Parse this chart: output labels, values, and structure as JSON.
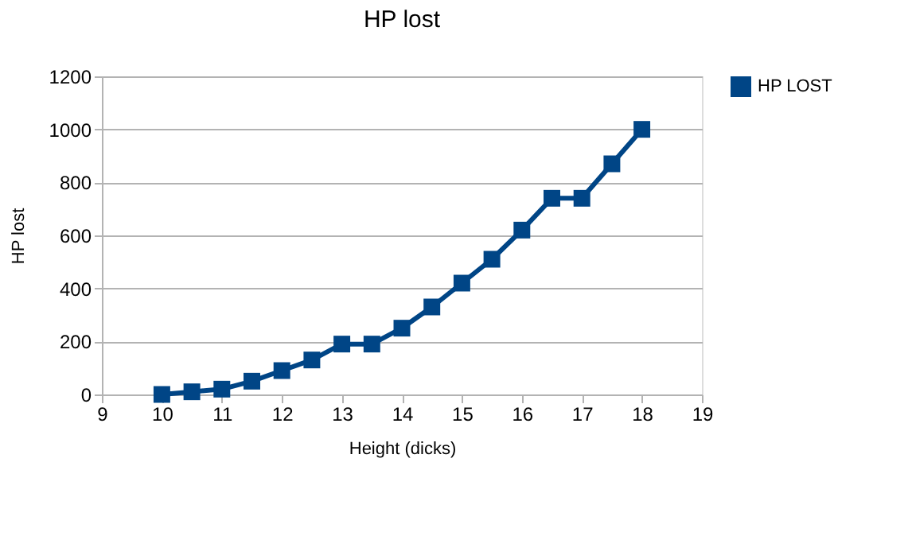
{
  "chart_data": {
    "type": "line",
    "title": "HP lost",
    "xlabel": "Height (dicks)",
    "ylabel": "HP lost",
    "x": [
      10,
      10.5,
      11,
      11.5,
      12,
      12.5,
      13,
      13.5,
      14,
      14.5,
      15,
      15.5,
      16,
      16.5,
      17,
      17.5,
      18
    ],
    "series": [
      {
        "name": "HP LOST",
        "color": "#004586",
        "values": [
          0,
          10,
          20,
          50,
          90,
          130,
          190,
          190,
          250,
          330,
          420,
          510,
          620,
          740,
          740,
          870,
          1000
        ]
      }
    ],
    "xlim": [
      9,
      19
    ],
    "xticks": [
      9,
      10,
      11,
      12,
      13,
      14,
      15,
      16,
      17,
      18,
      19
    ],
    "ylim": [
      0,
      1200
    ],
    "yticks": [
      0,
      200,
      400,
      600,
      800,
      1000,
      1200
    ],
    "grid": "y",
    "legend": "right",
    "marker": "square",
    "line_style": "solid"
  }
}
